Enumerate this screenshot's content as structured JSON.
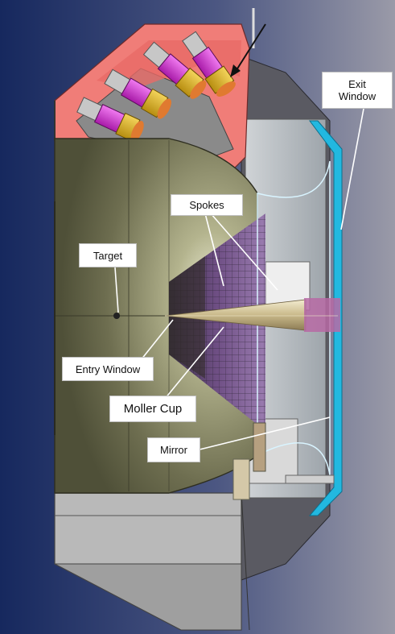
{
  "labels": {
    "exit_window_line1": "Exit",
    "exit_window_line2": "Window",
    "spokes": "Spokes",
    "target": "Target",
    "entry_window": "Entry Window",
    "moller_cup": "Moller Cup",
    "mirror": "Mirror"
  },
  "colors": {
    "background_left": "#16285e",
    "background_right": "#9a9aa8",
    "frame": "#f07d78",
    "vessel": "#8a8a6a",
    "grid": "#7b5a8e",
    "cone": "#d9cfa8",
    "window": "#22b8e0",
    "pmt_magenta": "#d22fd1",
    "pmt_gold": "#d8b020",
    "pmt_orange": "#e07a30"
  }
}
